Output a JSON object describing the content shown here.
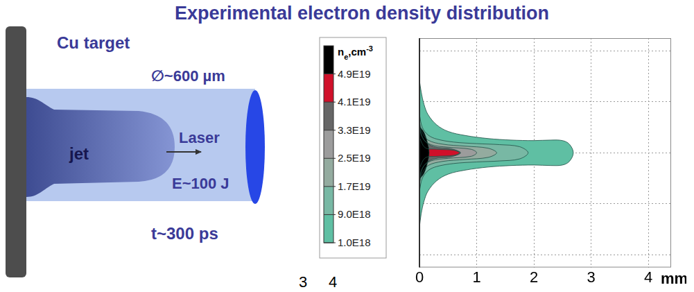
{
  "title": "Experimental electron density distribution",
  "diagram": {
    "target": "Cu target",
    "beam_diameter": "∅~600 µm",
    "laser": "Laser",
    "jet": "jet",
    "energy": "E~100 J",
    "duration": "t~300 ps"
  },
  "cropped_axis_ticks": [
    3,
    4
  ],
  "chart_data": {
    "type": "contour",
    "x_label": "mm",
    "xlim": [
      0,
      4.4
    ],
    "xticks": [
      0,
      1,
      2,
      3,
      4
    ],
    "ylim": [
      -2.25,
      2.25
    ],
    "yticks": [
      -2,
      -1,
      0,
      1,
      2
    ],
    "tick_labels": "x",
    "grid": true,
    "colorbar": {
      "label": {
        "base": "n",
        "subscript": "e",
        "text": ",cm",
        "superscript": "-3"
      },
      "range": [
        1e+18,
        5.7e+19
      ],
      "ticks": [
        {
          "value": 1e+18,
          "label": "1.0E18"
        },
        {
          "value": 9e+18,
          "label": "9.0E18"
        },
        {
          "value": 1.7e+19,
          "label": "1.7E19"
        },
        {
          "value": 2.5e+19,
          "label": "2.5E19"
        },
        {
          "value": 3.3e+19,
          "label": "3.3E19"
        },
        {
          "value": 4.1e+19,
          "label": "4.1E19"
        },
        {
          "value": 4.9e+19,
          "label": "4.9E19"
        }
      ],
      "colors": [
        "#5fbfa3",
        "#78b8a4",
        "#94ab9f",
        "#9c9c9c",
        "#666666",
        "#d0102a",
        "#000000"
      ]
    },
    "contours": [
      {
        "level": 1e+18,
        "x": [
          0,
          0.03,
          0.08,
          0.15,
          0.3,
          0.5,
          0.8,
          1.2,
          1.6,
          2.0,
          2.3,
          2.5,
          2.62,
          2.69,
          2.62,
          2.5,
          2.3,
          2.0,
          1.6,
          1.2,
          0.8,
          0.5,
          0.3,
          0.15,
          0.08,
          0.03,
          0
        ],
        "y": [
          1.42,
          1.2,
          0.95,
          0.75,
          0.55,
          0.42,
          0.34,
          0.28,
          0.25,
          0.24,
          0.25,
          0.24,
          0.17,
          0,
          -0.17,
          -0.24,
          -0.25,
          -0.24,
          -0.25,
          -0.28,
          -0.34,
          -0.42,
          -0.55,
          -0.75,
          -0.95,
          -1.2,
          -1.46
        ]
      },
      {
        "level": 9e+18,
        "x": [
          0,
          0.05,
          0.15,
          0.3,
          0.6,
          1.0,
          1.4,
          1.75,
          1.9,
          1.75,
          1.4,
          1.0,
          0.6,
          0.3,
          0.15,
          0.05,
          0
        ],
        "y": [
          0.75,
          0.5,
          0.35,
          0.27,
          0.21,
          0.18,
          0.16,
          0.12,
          0,
          -0.12,
          -0.16,
          -0.18,
          -0.21,
          -0.27,
          -0.35,
          -0.5,
          -0.75
        ]
      },
      {
        "level": 1.7e+19,
        "x": [
          0,
          0.05,
          0.15,
          0.4,
          0.8,
          1.2,
          1.35,
          1.2,
          0.8,
          0.4,
          0.15,
          0.05,
          0
        ],
        "y": [
          0.6,
          0.4,
          0.25,
          0.17,
          0.13,
          0.09,
          0,
          -0.09,
          -0.13,
          -0.17,
          -0.25,
          -0.4,
          -0.6
        ]
      },
      {
        "level": 2.5e+19,
        "x": [
          0,
          0.05,
          0.2,
          0.5,
          0.9,
          1.0,
          0.9,
          0.5,
          0.2,
          0.05,
          0
        ],
        "y": [
          0.55,
          0.3,
          0.16,
          0.11,
          0.07,
          0,
          -0.07,
          -0.11,
          -0.16,
          -0.3,
          -0.55
        ]
      },
      {
        "level": 3.3e+19,
        "x": [
          0,
          0.08,
          0.25,
          0.55,
          0.72,
          0.55,
          0.25,
          0.08,
          0
        ],
        "y": [
          0.5,
          0.25,
          0.12,
          0.08,
          0,
          -0.08,
          -0.12,
          -0.25,
          -0.5
        ]
      },
      {
        "level": 4.1e+19,
        "x": [
          0,
          0.1,
          0.3,
          0.6,
          0.7,
          0.6,
          0.3,
          0.1,
          0
        ],
        "y": [
          0.3,
          0.1,
          0.07,
          0.05,
          0,
          -0.05,
          -0.07,
          -0.1,
          -0.3
        ]
      },
      {
        "level": 4.9e+19,
        "x": [
          0,
          0.08,
          0.14,
          0.17,
          0.14,
          0.08,
          0
        ],
        "y": [
          0.52,
          0.4,
          0.2,
          0,
          -0.2,
          -0.4,
          -0.52
        ]
      }
    ]
  }
}
